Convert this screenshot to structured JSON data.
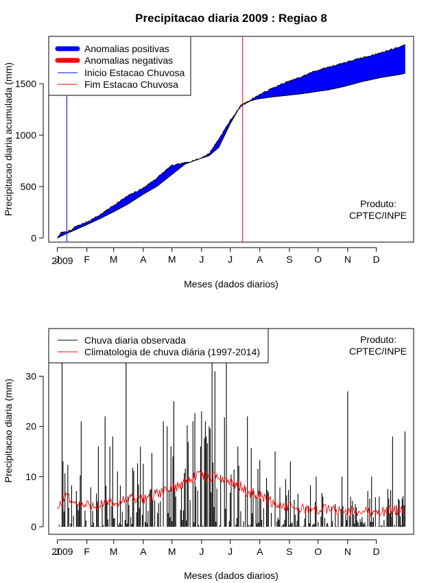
{
  "title": "Precipitacao diaria 2009 : Regiao 8",
  "colors": {
    "positive": "#0000ff",
    "negative": "#ff0000",
    "observed": "#000000",
    "climatology": "#ff0000",
    "start_line": "#0000ff",
    "end_line": "#ff0000"
  },
  "chart_data": [
    {
      "type": "area",
      "name": "accumulated",
      "title": "Precipitacao diaria 2009 : Regiao 8",
      "xlabel": "Meses (dados diarios)",
      "ylabel": "Precipitacao diaria acumulada (mm)",
      "year_label": "2009",
      "product_label": [
        "Produto:",
        "CPTEC/INPE"
      ],
      "month_ticks": [
        "J",
        "F",
        "M",
        "A",
        "M",
        "J",
        "J",
        "A",
        "S",
        "O",
        "N",
        "D"
      ],
      "month_start_days": [
        1,
        32,
        60,
        91,
        121,
        152,
        182,
        213,
        244,
        274,
        305,
        335
      ],
      "ylim": [
        -40,
        1960
      ],
      "yticks": [
        0,
        500,
        1000,
        1500
      ],
      "xlim": [
        -8,
        374
      ],
      "legend": [
        "Anomalias positivas",
        "Anomalias negativas",
        "Inicio Estacao Chuvosa",
        "Fim Estacao Chuvosa"
      ],
      "rainy_season_start_day": 11,
      "rainy_season_end_day": 195,
      "climatology_accumulated_days": [
        1,
        10,
        20,
        31,
        45,
        59,
        75,
        90,
        105,
        120,
        135,
        150,
        160,
        170,
        182,
        193,
        200,
        210,
        225,
        240,
        255,
        270,
        285,
        300,
        320,
        340,
        360,
        365
      ],
      "climatology_accumulated_mm": [
        0,
        40,
        80,
        125,
        185,
        250,
        330,
        420,
        500,
        610,
        720,
        770,
        800,
        880,
        1110,
        1290,
        1325,
        1350,
        1370,
        1385,
        1400,
        1420,
        1440,
        1470,
        1520,
        1560,
        1590,
        1600
      ],
      "observed_accumulated_days": [
        1,
        5,
        10,
        15,
        20,
        31,
        45,
        59,
        75,
        90,
        105,
        120,
        135,
        150,
        160,
        170,
        182,
        193,
        200,
        210,
        225,
        240,
        255,
        270,
        285,
        300,
        320,
        340,
        360,
        365
      ],
      "observed_accumulated_mm": [
        0,
        50,
        60,
        70,
        110,
        150,
        220,
        310,
        410,
        480,
        580,
        700,
        730,
        770,
        820,
        960,
        1140,
        1280,
        1320,
        1380,
        1450,
        1510,
        1560,
        1620,
        1660,
        1700,
        1750,
        1800,
        1860,
        1880
      ]
    },
    {
      "type": "bar",
      "name": "daily",
      "xlabel": "Meses (dados diarios)",
      "ylabel": "Precipitacao diaria (mm)",
      "year_label": "2009",
      "product_label": [
        "Produto:",
        "CPTEC/INPE"
      ],
      "month_ticks": [
        "J",
        "F",
        "M",
        "A",
        "M",
        "J",
        "J",
        "A",
        "S",
        "O",
        "N",
        "D"
      ],
      "month_start_days": [
        1,
        32,
        60,
        91,
        121,
        152,
        182,
        213,
        244,
        274,
        305,
        335
      ],
      "ylim": [
        -1.5,
        39.5
      ],
      "yticks": [
        0,
        10,
        20,
        30
      ],
      "xlim": [
        -8,
        374
      ],
      "legend": [
        "Chuva diaria observada",
        "Climatologia de chuva diária (1997-2014)"
      ],
      "observed_peaks_days": [
        6,
        26,
        44,
        51,
        56,
        59,
        73,
        88,
        112,
        116,
        120,
        123,
        143,
        151,
        156,
        157,
        160,
        163,
        166,
        178,
        190,
        200,
        229,
        245,
        272,
        299,
        305,
        330,
        352,
        365
      ],
      "observed_peaks_mm": [
        34,
        21,
        16,
        22,
        16,
        18,
        35,
        16,
        21,
        20,
        16,
        25,
        21,
        16,
        21,
        18,
        20,
        34,
        31,
        34,
        16,
        22,
        15,
        13,
        10,
        10,
        27,
        10,
        18,
        19
      ],
      "climatology_days": [
        1,
        10,
        20,
        31,
        45,
        59,
        75,
        90,
        105,
        120,
        135,
        150,
        160,
        170,
        182,
        193,
        200,
        210,
        225,
        240,
        255,
        270,
        285,
        300,
        320,
        340,
        360,
        365
      ],
      "climatology_mm": [
        3.5,
        6.5,
        4.5,
        4.2,
        4.5,
        4.5,
        5.5,
        5.5,
        6.5,
        7.5,
        9.0,
        10.5,
        9.5,
        10.0,
        9.0,
        8.0,
        7.0,
        6.5,
        5.0,
        4.0,
        3.5,
        3.5,
        3.5,
        3.0,
        3.0,
        3.0,
        3.5,
        3.5
      ]
    }
  ]
}
